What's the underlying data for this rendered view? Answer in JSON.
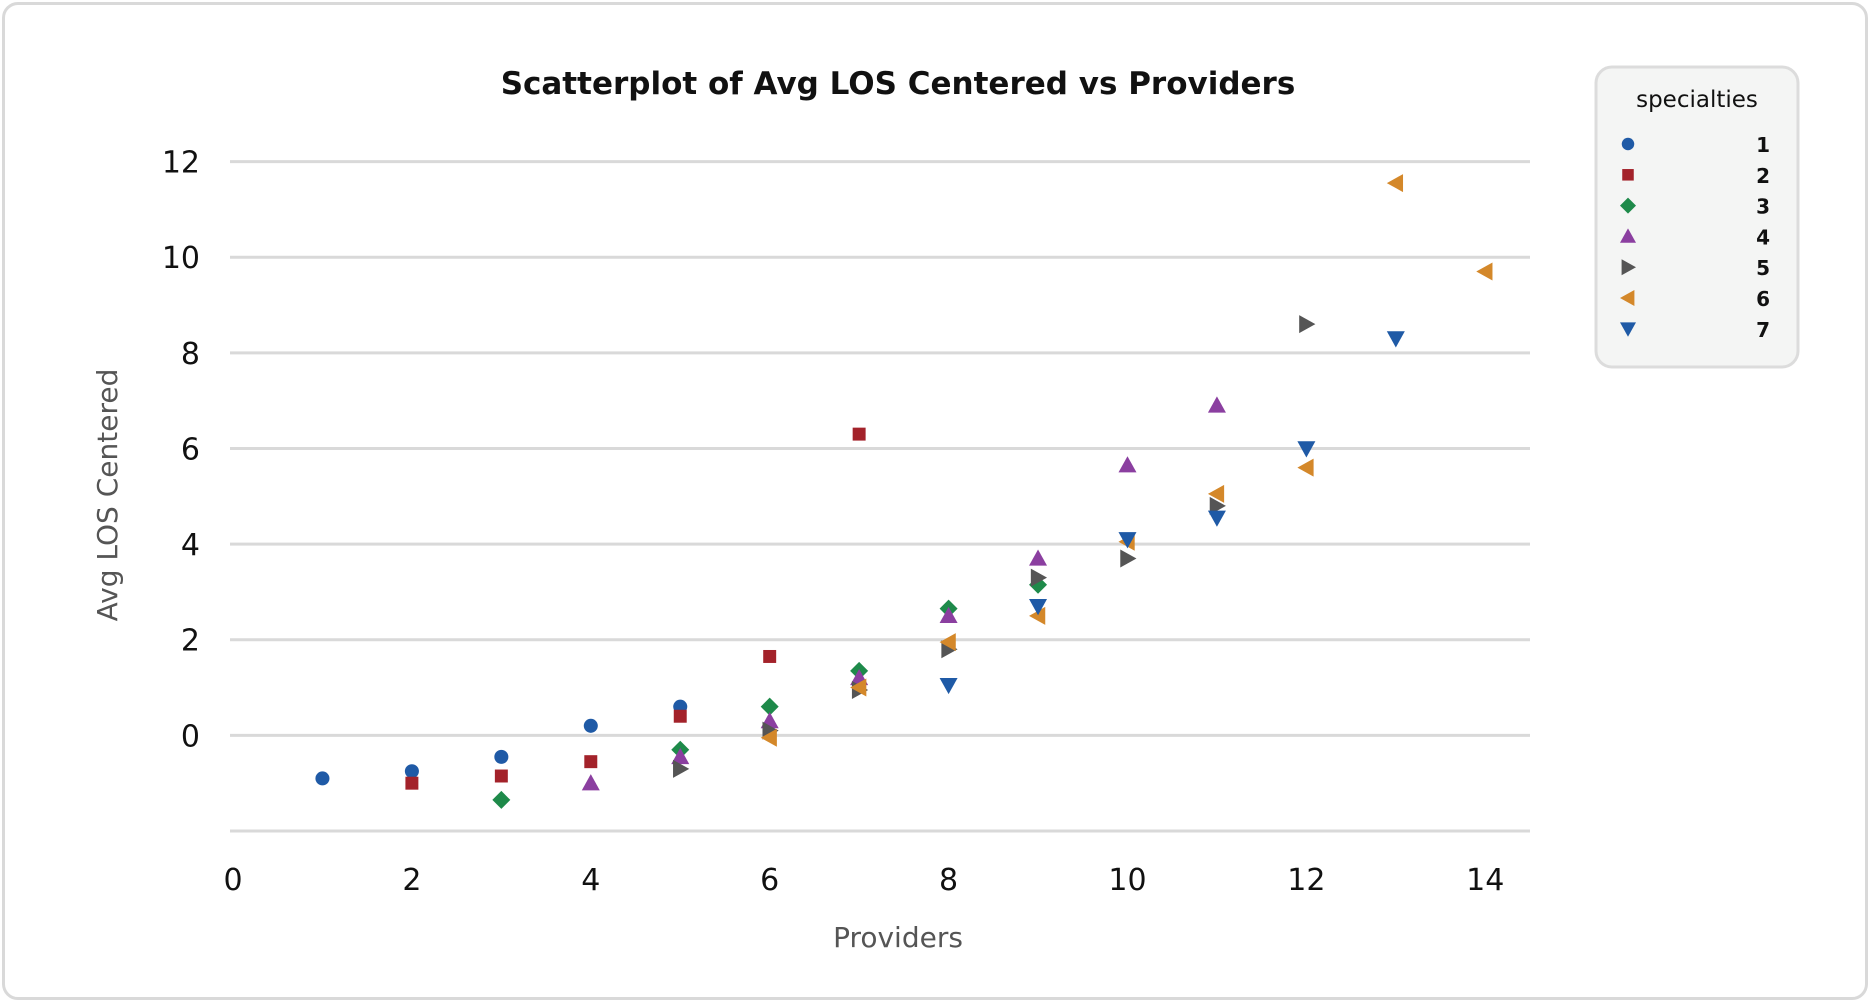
{
  "chart_data": {
    "type": "scatter",
    "title": "Scatterplot of Avg LOS Centered vs Providers",
    "xlabel": "Providers",
    "ylabel": "Avg LOS Centered",
    "xlim": [
      0,
      14.5
    ],
    "ylim": [
      -2,
      12.2
    ],
    "x_ticks": [
      0,
      2,
      4,
      6,
      8,
      10,
      12,
      14
    ],
    "y_ticks": [
      0,
      2,
      4,
      6,
      8,
      10,
      12
    ],
    "gridlines_y": [
      -2,
      0,
      2,
      4,
      6,
      8,
      10,
      12
    ],
    "grid": "horizontal",
    "legend": {
      "title": "specialties",
      "placement": "top-right"
    },
    "series": [
      {
        "name": "1",
        "marker": "circle",
        "color": "#1f5aa6",
        "points": [
          [
            1,
            -0.9
          ],
          [
            2,
            -0.75
          ],
          [
            3,
            -0.45
          ],
          [
            4,
            0.2
          ],
          [
            5,
            0.6
          ]
        ]
      },
      {
        "name": "2",
        "marker": "square",
        "color": "#a3222a",
        "points": [
          [
            2,
            -1.0
          ],
          [
            3,
            -0.85
          ],
          [
            4,
            -0.55
          ],
          [
            5,
            0.4
          ],
          [
            6,
            1.65
          ],
          [
            7,
            6.3
          ]
        ]
      },
      {
        "name": "3",
        "marker": "diamond",
        "color": "#1e8a4a",
        "points": [
          [
            3,
            -1.35
          ],
          [
            5,
            -0.3
          ],
          [
            6,
            0.6
          ],
          [
            7,
            1.35
          ],
          [
            8,
            2.65
          ],
          [
            9,
            3.15
          ]
        ]
      },
      {
        "name": "4",
        "marker": "triangle-up",
        "color": "#8b3fa0",
        "points": [
          [
            4,
            -1.0
          ],
          [
            5,
            -0.45
          ],
          [
            6,
            0.3
          ],
          [
            7,
            1.2
          ],
          [
            8,
            2.5
          ],
          [
            9,
            3.7
          ],
          [
            10,
            5.65
          ],
          [
            11,
            6.9
          ]
        ]
      },
      {
        "name": "5",
        "marker": "triangle-right",
        "color": "#555555",
        "points": [
          [
            5,
            -0.7
          ],
          [
            6,
            0.1
          ],
          [
            7,
            0.95
          ],
          [
            8,
            1.8
          ],
          [
            9,
            3.3
          ],
          [
            10,
            3.7
          ],
          [
            11,
            4.8
          ],
          [
            12,
            8.6
          ]
        ]
      },
      {
        "name": "6",
        "marker": "triangle-left",
        "color": "#d4882a",
        "points": [
          [
            6,
            -0.05
          ],
          [
            7,
            1.0
          ],
          [
            8,
            1.95
          ],
          [
            9,
            2.5
          ],
          [
            10,
            4.05
          ],
          [
            11,
            5.05
          ],
          [
            12,
            5.6
          ],
          [
            13,
            11.55
          ],
          [
            14,
            9.7
          ]
        ]
      },
      {
        "name": "7",
        "marker": "triangle-down",
        "color": "#1f5aa6",
        "points": [
          [
            8,
            1.05
          ],
          [
            9,
            2.7
          ],
          [
            10,
            4.1
          ],
          [
            11,
            4.55
          ],
          [
            12,
            6.0
          ],
          [
            13,
            8.3
          ]
        ]
      }
    ]
  }
}
